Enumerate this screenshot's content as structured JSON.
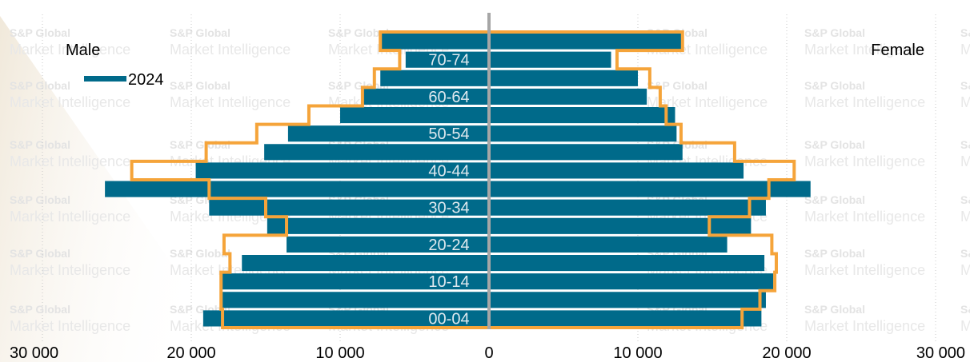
{
  "chart_data": {
    "type": "bar",
    "orientation": "horizontal",
    "layout": "population-pyramid",
    "left_label": "Male",
    "right_label": "Female",
    "series_label": "2024",
    "categories": [
      "00-04",
      "05-09",
      "10-14",
      "15-19",
      "20-24",
      "25-29",
      "30-34",
      "35-39",
      "40-44",
      "45-49",
      "50-54",
      "55-59",
      "60-64",
      "65-69",
      "70-74",
      "75-79"
    ],
    "shown_category_labels": [
      "00-04",
      "10-14",
      "20-24",
      "30-34",
      "40-44",
      "50-54",
      "60-64",
      "70-74"
    ],
    "series": [
      {
        "name": "2024",
        "side": "male",
        "style": "bar",
        "values": [
          19200,
          17900,
          18000,
          16600,
          13600,
          14900,
          18800,
          25800,
          19700,
          15100,
          13500,
          10000,
          8500,
          7300,
          5600,
          7300
        ]
      },
      {
        "name": "2024",
        "side": "female",
        "style": "bar",
        "values": [
          18300,
          18600,
          19100,
          18500,
          16000,
          17600,
          18600,
          21600,
          17100,
          13000,
          12600,
          12500,
          10600,
          10000,
          8200,
          13000
        ]
      },
      {
        "side": "male",
        "style": "outline",
        "values": [
          17900,
          18000,
          18000,
          17400,
          17800,
          13600,
          15000,
          18800,
          24000,
          19000,
          15600,
          12100,
          8500,
          7700,
          6000,
          7300
        ]
      },
      {
        "side": "female",
        "style": "outline",
        "values": [
          17000,
          18200,
          19200,
          19300,
          19000,
          14800,
          17500,
          18800,
          20500,
          16500,
          12900,
          11900,
          11500,
          10800,
          8600,
          13000
        ]
      }
    ],
    "xlim": [
      -30000,
      30000
    ],
    "x_ticks": [
      -30000,
      -20000,
      -10000,
      0,
      10000,
      20000,
      30000
    ],
    "x_tick_labels": [
      "30 000",
      "20 000",
      "10 000",
      "0",
      "10 000",
      "20 000",
      "30 000"
    ],
    "colors": {
      "bar": "#006a8a",
      "outline": "#f5a43a",
      "axis": "#a6a6a6",
      "grid": "#c8c8c8"
    },
    "watermark_lines": [
      "S&P Global",
      "Market Intelligence"
    ],
    "grid": "vertical-dotted",
    "legend": "top-left"
  }
}
